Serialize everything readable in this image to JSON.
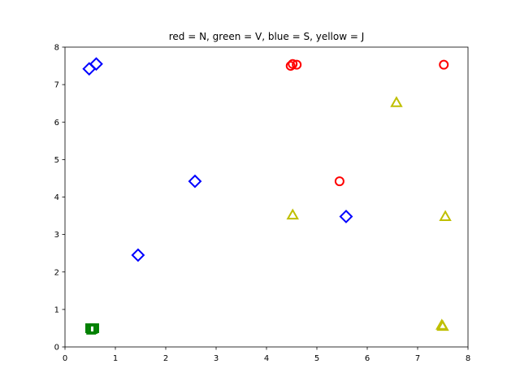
{
  "chart_data": {
    "type": "scatter",
    "title": "red = N, green = V, blue = S, yellow = J",
    "xlabel": "",
    "ylabel": "",
    "xlim": [
      0,
      8
    ],
    "ylim": [
      0,
      8
    ],
    "xticks": [
      "0",
      "1",
      "2",
      "3",
      "4",
      "5",
      "6",
      "7",
      "8"
    ],
    "yticks": [
      "0",
      "1",
      "2",
      "3",
      "4",
      "5",
      "6",
      "7",
      "8"
    ],
    "grid": false,
    "series": [
      {
        "color": "#ff0000",
        "marker": "circle",
        "points": [
          [
            4.48,
            7.5
          ],
          [
            4.52,
            7.55
          ],
          [
            4.6,
            7.53
          ],
          [
            7.52,
            7.53
          ],
          [
            5.45,
            4.42
          ]
        ]
      },
      {
        "color": "#008000",
        "marker": "square",
        "points": [
          [
            0.5,
            0.5
          ],
          [
            0.55,
            0.48
          ],
          [
            0.52,
            0.46
          ],
          [
            0.58,
            0.5
          ]
        ]
      },
      {
        "color": "#0000ff",
        "marker": "diamond",
        "points": [
          [
            0.48,
            7.42
          ],
          [
            0.62,
            7.55
          ],
          [
            2.58,
            4.42
          ],
          [
            1.45,
            2.45
          ],
          [
            5.58,
            3.48
          ]
        ]
      },
      {
        "color": "#bfbf00",
        "marker": "triangle",
        "points": [
          [
            6.58,
            6.52
          ],
          [
            4.52,
            3.52
          ],
          [
            7.55,
            3.48
          ],
          [
            7.48,
            0.58
          ],
          [
            7.5,
            0.55
          ]
        ]
      }
    ]
  }
}
